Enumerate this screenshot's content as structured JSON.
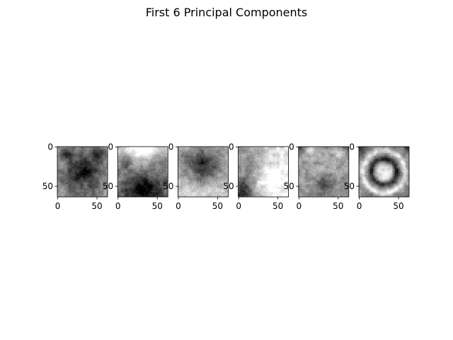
{
  "figure": {
    "title": "First 6 Principal Components"
  },
  "chart_data": {
    "type": "heatmap",
    "colormap": "gray",
    "grid": false,
    "panel_count": 6,
    "image_size": [
      64,
      64
    ],
    "xlim": [
      0,
      64
    ],
    "ylim": [
      64,
      0
    ],
    "x_ticks": [
      0,
      50
    ],
    "y_ticks": [
      0,
      50
    ],
    "x_tick_labels": [
      "0",
      "50"
    ],
    "y_tick_labels": [
      "0",
      "50"
    ],
    "panels": [
      {
        "name": "",
        "pattern": "pc1-dark-cat-face-on-light-frame"
      },
      {
        "name": "",
        "pattern": "pc2-bright-top-dark-bottom"
      },
      {
        "name": "",
        "pattern": "pc3-dark-head-light-lower-surround"
      },
      {
        "name": "",
        "pattern": "pc4-dark-left-light-center"
      },
      {
        "name": "",
        "pattern": "pc5-light-ears-dark-corners"
      },
      {
        "name": "",
        "pattern": "pc6-ring-bright-center"
      }
    ]
  }
}
